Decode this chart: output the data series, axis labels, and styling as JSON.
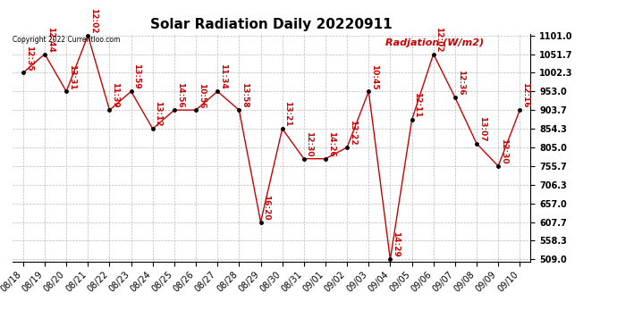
{
  "title": "Solar Radiation Daily 20220911",
  "ylabel": "Radjation (W/m2)",
  "copyright": "Copyright 2022 Currentloo.com",
  "dates": [
    "08/18",
    "08/19",
    "08/20",
    "08/21",
    "08/22",
    "08/23",
    "08/24",
    "08/25",
    "08/26",
    "08/27",
    "08/28",
    "08/29",
    "08/30",
    "08/31",
    "09/01",
    "09/02",
    "09/03",
    "09/04",
    "09/05",
    "09/06",
    "09/07",
    "09/08",
    "09/09",
    "09/10"
  ],
  "values": [
    1002.3,
    1051.7,
    953.0,
    1101.0,
    903.7,
    953.0,
    854.3,
    903.7,
    903.7,
    953.0,
    903.7,
    607.7,
    854.3,
    775.0,
    775.0,
    805.0,
    953.0,
    509.0,
    878.0,
    1051.7,
    937.0,
    815.0,
    755.7,
    903.7
  ],
  "time_labels": [
    "12:35",
    "12:44",
    "13:31",
    "12:02",
    "11:39",
    "13:59",
    "13:12",
    "14:56",
    "10:56",
    "11:34",
    "13:58",
    "16:20",
    "13:21",
    "12:30",
    "14:26",
    "13:22",
    "10:45",
    "14:29",
    "12:11",
    "12:02",
    "12:36",
    "13:07",
    "12:30",
    "12:16"
  ],
  "ylim": [
    509.0,
    1101.0
  ],
  "yticks": [
    509.0,
    558.3,
    607.7,
    657.0,
    706.3,
    755.7,
    805.0,
    854.3,
    903.7,
    953.0,
    1002.3,
    1051.7,
    1101.0
  ],
  "line_color": "#cc0000",
  "dot_color": "#000000",
  "label_color": "#cc0000",
  "grid_color": "#bbbbbb",
  "background_color": "#ffffff",
  "title_fontsize": 11,
  "label_fontsize": 6.5,
  "tick_fontsize": 7,
  "ylabel_fontsize": 8
}
